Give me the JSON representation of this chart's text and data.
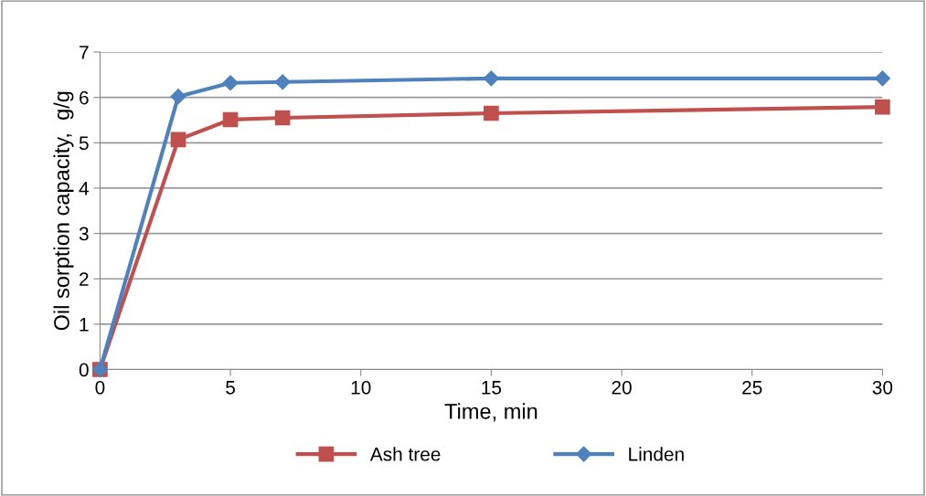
{
  "chart_data": {
    "type": "line",
    "xlabel": "Time, min",
    "ylabel": "Oil sorption capacity,  g/g",
    "xlim": [
      0,
      30
    ],
    "xticks": [
      0,
      5,
      10,
      15,
      20,
      25,
      30
    ],
    "ylim": [
      0,
      7
    ],
    "yticks": [
      0,
      1,
      2,
      3,
      4,
      5,
      6,
      7
    ],
    "grid": "y",
    "legend": "bottom",
    "line_style": "solid",
    "series": [
      {
        "name": "Ash tree",
        "color": "#c0504d",
        "marker": "square",
        "x": [
          0,
          3,
          5,
          7,
          15,
          30
        ],
        "values": [
          0,
          5.07,
          5.51,
          5.55,
          5.65,
          5.79
        ]
      },
      {
        "name": "Linden",
        "color": "#4f81bd",
        "marker": "diamond",
        "x": [
          0,
          3,
          5,
          7,
          15,
          30
        ],
        "values": [
          0,
          6.02,
          6.32,
          6.34,
          6.42,
          6.42
        ]
      }
    ]
  }
}
